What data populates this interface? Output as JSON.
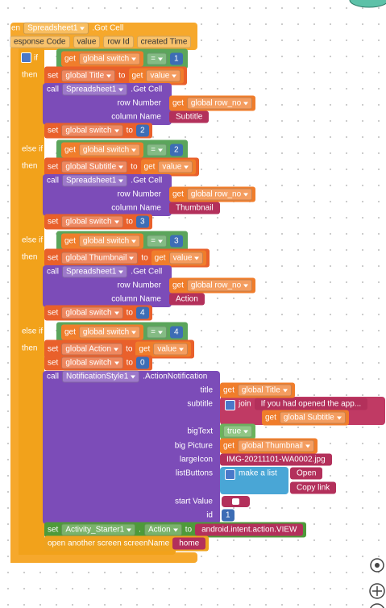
{
  "event": {
    "prefix": "en",
    "component": "Spreadsheet1",
    "method": ".Got Cell",
    "params": [
      "esponse Code",
      "value",
      "row Id",
      "created Time"
    ]
  },
  "branches": [
    {
      "keyword": "if",
      "condition": {
        "get": "get",
        "variable": "global switch",
        "operator": "=",
        "number": 1
      },
      "then": "then",
      "set_value": {
        "set": "set",
        "variable": "global Title",
        "to": "to",
        "get": "get",
        "value": "value"
      },
      "get_cell": {
        "call": "call",
        "component": "Spreadsheet1",
        "method": ".Get Cell",
        "row_label": "row Number",
        "row_get": "get",
        "row_variable": "global row_no",
        "column_label": "column Name",
        "column_text": "Subtitle"
      },
      "set_switch": {
        "set": "set",
        "variable": "global switch",
        "to": "to",
        "number": 2
      }
    },
    {
      "keyword": "else if",
      "condition": {
        "get": "get",
        "variable": "global switch",
        "operator": "=",
        "number": 2
      },
      "then": "then",
      "set_value": {
        "set": "set",
        "variable": "global Subtitle",
        "to": "to",
        "get": "get",
        "value": "value"
      },
      "get_cell": {
        "call": "call",
        "component": "Spreadsheet1",
        "method": ".Get Cell",
        "row_label": "row Number",
        "row_get": "get",
        "row_variable": "global row_no",
        "column_label": "column Name",
        "column_text": "Thumbnail"
      },
      "set_switch": {
        "set": "set",
        "variable": "global switch",
        "to": "to",
        "number": 3
      }
    },
    {
      "keyword": "else if",
      "condition": {
        "get": "get",
        "variable": "global switch",
        "operator": "=",
        "number": 3
      },
      "then": "then",
      "set_value": {
        "set": "set",
        "variable": "global Thumbnail",
        "to": "to",
        "get": "get",
        "value": "value"
      },
      "get_cell": {
        "call": "call",
        "component": "Spreadsheet1",
        "method": ".Get Cell",
        "row_label": "row Number",
        "row_get": "get",
        "row_variable": "global row_no",
        "column_label": "column Name",
        "column_text": "Action"
      },
      "set_switch": {
        "set": "set",
        "variable": "global switch",
        "to": "to",
        "number": 4
      }
    },
    {
      "keyword": "else if",
      "condition": {
        "get": "get",
        "variable": "global switch",
        "operator": "=",
        "number": 4
      },
      "then": "then",
      "set_value": {
        "set": "set",
        "variable": "global Action",
        "to": "to",
        "get": "get",
        "value": "value"
      },
      "set_switch": {
        "set": "set",
        "variable": "global switch",
        "to": "to",
        "number": 0
      },
      "notification": {
        "call": "call",
        "component": "NotificationStyle1",
        "method": ".ActionNotification",
        "title": {
          "label": "title",
          "get": "get",
          "variable": "global Title"
        },
        "subtitle": {
          "label": "subtitle",
          "join": "join",
          "text": "If you had opened the app...",
          "get": "get",
          "variable": "global Subtitle"
        },
        "big_text": {
          "label": "bigText",
          "value": "true"
        },
        "big_picture": {
          "label": "big Picture",
          "get": "get",
          "variable": "global Thumbnail"
        },
        "large_icon": {
          "label": "largeIcon",
          "text": "IMG-20211101-WA0002.jpg"
        },
        "list_buttons": {
          "label": "listButtons",
          "make": "make a list",
          "items": [
            "Open",
            "Copy link"
          ]
        },
        "start_value": {
          "label": "start Value"
        },
        "id": {
          "label": "id",
          "value": 1
        }
      }
    }
  ],
  "activity": {
    "set": "set",
    "component": "Activity_Starter1",
    "dot": ".",
    "property": "Action",
    "to": "to",
    "text": "android.intent.action.VIEW"
  },
  "open_screen": {
    "label": "open another screen  screenName",
    "text": "home"
  }
}
